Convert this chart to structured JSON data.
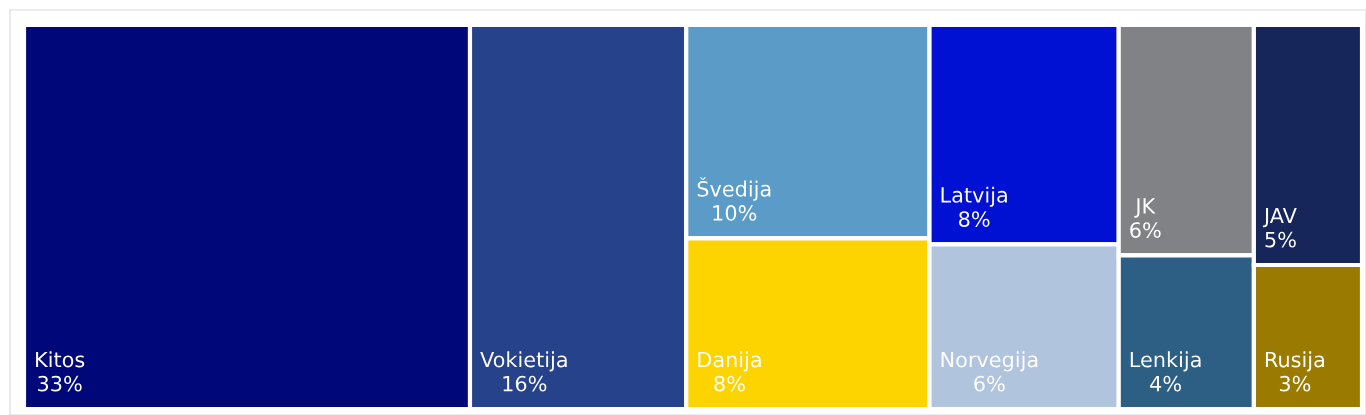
{
  "chart_data": {
    "type": "other",
    "categories": [
      "Kitos",
      "Vokietija",
      "Švedija",
      "Danija",
      "Latvija",
      "Norvegija",
      "JK",
      "Lenkija",
      "JAV",
      "Rusija"
    ],
    "values": [
      33,
      16,
      10,
      8,
      8,
      6,
      6,
      4,
      5,
      3
    ],
    "value_labels": [
      "33%",
      "16%",
      "10%",
      "8%",
      "8%",
      "6%",
      "6%",
      "4%",
      "5%",
      "3%"
    ],
    "colors": [
      "#000778",
      "#26428b",
      "#5b9bc8",
      "#fdd300",
      "#0011d4",
      "#b0c4de",
      "#808285",
      "#2d5f84",
      "#16265a",
      "#9a7b00"
    ]
  }
}
